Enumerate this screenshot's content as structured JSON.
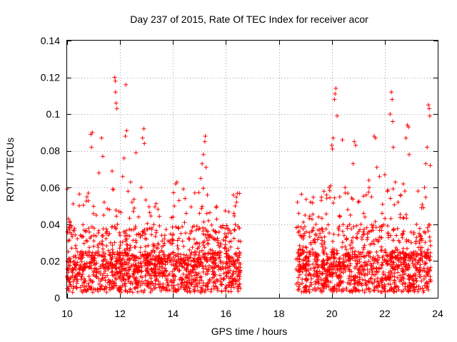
{
  "chart_data": {
    "type": "scatter",
    "title": "Day 237 of 2015, Rate Of TEC Index for receiver acor",
    "xlabel": "GPS time / hours",
    "ylabel": "ROTI / TECUs",
    "xlim": [
      10,
      24
    ],
    "ylim": [
      0,
      0.14
    ],
    "xticks": [
      10,
      12,
      14,
      16,
      18,
      20,
      22,
      24
    ],
    "xtick_labels": [
      "10",
      "12",
      "14",
      "16",
      "18",
      "20",
      "22",
      "24"
    ],
    "yticks": [
      0,
      0.02,
      0.04,
      0.06,
      0.08,
      0.1,
      0.12,
      0.14
    ],
    "ytick_labels": [
      "0",
      "0.02",
      "0.04",
      "0.06",
      "0.08",
      "0.1",
      "0.12",
      "0.14"
    ],
    "grid": true,
    "marker": "plus",
    "color": "#ff0000",
    "series": [
      {
        "points": [
          [
            10.05,
            0.043
          ],
          [
            10.1,
            0.041
          ],
          [
            10.2,
            0.012
          ],
          [
            10.3,
            0.018
          ],
          [
            10.4,
            0.025
          ],
          [
            10.5,
            0.034
          ],
          [
            10.6,
            0.022
          ],
          [
            10.7,
            0.036
          ],
          [
            10.75,
            0.055
          ],
          [
            10.8,
            0.057
          ],
          [
            10.9,
            0.089
          ],
          [
            10.95,
            0.09
          ],
          [
            10.92,
            0.082
          ],
          [
            11.0,
            0.028
          ],
          [
            11.1,
            0.045
          ],
          [
            11.2,
            0.068
          ],
          [
            11.3,
            0.087
          ],
          [
            11.35,
            0.077
          ],
          [
            11.4,
            0.052
          ],
          [
            11.5,
            0.036
          ],
          [
            11.6,
            0.048
          ],
          [
            11.7,
            0.069
          ],
          [
            11.75,
            0.059
          ],
          [
            11.8,
            0.12
          ],
          [
            11.82,
            0.118
          ],
          [
            11.85,
            0.106
          ],
          [
            11.88,
            0.103
          ],
          [
            11.83,
            0.112
          ],
          [
            11.9,
            0.04
          ],
          [
            12.0,
            0.034
          ],
          [
            12.1,
            0.066
          ],
          [
            12.15,
            0.076
          ],
          [
            12.2,
            0.088
          ],
          [
            12.25,
            0.091
          ],
          [
            12.22,
            0.116
          ],
          [
            12.3,
            0.058
          ],
          [
            12.4,
            0.063
          ],
          [
            12.45,
            0.052
          ],
          [
            12.5,
            0.047
          ],
          [
            12.6,
            0.079
          ],
          [
            12.7,
            0.044
          ],
          [
            12.8,
            0.06
          ],
          [
            12.85,
            0.087
          ],
          [
            12.9,
            0.092
          ],
          [
            12.92,
            0.084
          ],
          [
            13.0,
            0.032
          ],
          [
            13.1,
            0.018
          ],
          [
            13.3,
            0.014
          ],
          [
            13.5,
            0.012
          ],
          [
            13.7,
            0.016
          ],
          [
            13.9,
            0.02
          ],
          [
            14.0,
            0.044
          ],
          [
            14.05,
            0.05
          ],
          [
            14.1,
            0.062
          ],
          [
            14.15,
            0.063
          ],
          [
            14.2,
            0.038
          ],
          [
            14.3,
            0.035
          ],
          [
            14.4,
            0.028
          ],
          [
            14.5,
            0.046
          ],
          [
            14.6,
            0.032
          ],
          [
            14.7,
            0.036
          ],
          [
            14.8,
            0.039
          ],
          [
            14.9,
            0.03
          ],
          [
            15.0,
            0.046
          ],
          [
            15.05,
            0.065
          ],
          [
            15.1,
            0.073
          ],
          [
            15.15,
            0.078
          ],
          [
            15.2,
            0.085
          ],
          [
            15.22,
            0.088
          ],
          [
            15.25,
            0.071
          ],
          [
            15.3,
            0.056
          ],
          [
            15.4,
            0.034
          ],
          [
            15.5,
            0.022
          ],
          [
            15.6,
            0.036
          ],
          [
            15.7,
            0.03
          ],
          [
            15.8,
            0.02
          ],
          [
            15.9,
            0.016
          ],
          [
            16.0,
            0.024
          ],
          [
            16.1,
            0.026
          ],
          [
            16.2,
            0.022
          ],
          [
            16.3,
            0.046
          ],
          [
            16.35,
            0.05
          ],
          [
            16.4,
            0.052
          ],
          [
            16.45,
            0.039
          ],
          [
            16.5,
            0.038
          ],
          [
            18.7,
            0.052
          ],
          [
            18.75,
            0.046
          ],
          [
            18.8,
            0.034
          ],
          [
            18.9,
            0.026
          ],
          [
            19.0,
            0.022
          ],
          [
            19.1,
            0.018
          ],
          [
            19.2,
            0.03
          ],
          [
            19.3,
            0.038
          ],
          [
            19.4,
            0.04
          ],
          [
            19.5,
            0.044
          ],
          [
            19.6,
            0.053
          ],
          [
            19.7,
            0.058
          ],
          [
            19.8,
            0.056
          ],
          [
            19.9,
            0.06
          ],
          [
            19.95,
            0.061
          ],
          [
            20.0,
            0.083
          ],
          [
            20.02,
            0.081
          ],
          [
            20.05,
            0.087
          ],
          [
            20.1,
            0.108
          ],
          [
            20.12,
            0.111
          ],
          [
            20.15,
            0.114
          ],
          [
            20.2,
            0.099
          ],
          [
            20.3,
            0.055
          ],
          [
            20.4,
            0.086
          ],
          [
            20.5,
            0.06
          ],
          [
            20.6,
            0.048
          ],
          [
            20.7,
            0.045
          ],
          [
            20.8,
            0.073
          ],
          [
            20.85,
            0.085
          ],
          [
            20.9,
            0.083
          ],
          [
            21.0,
            0.052
          ],
          [
            21.1,
            0.04
          ],
          [
            21.2,
            0.046
          ],
          [
            21.3,
            0.056
          ],
          [
            21.4,
            0.064
          ],
          [
            21.5,
            0.055
          ],
          [
            21.6,
            0.088
          ],
          [
            21.65,
            0.087
          ],
          [
            21.7,
            0.071
          ],
          [
            21.8,
            0.066
          ],
          [
            21.9,
            0.046
          ],
          [
            22.0,
            0.067
          ],
          [
            22.1,
            0.058
          ],
          [
            22.2,
            0.1
          ],
          [
            22.25,
            0.112
          ],
          [
            22.28,
            0.108
          ],
          [
            22.3,
            0.096
          ],
          [
            22.32,
            0.082
          ],
          [
            22.4,
            0.063
          ],
          [
            22.5,
            0.052
          ],
          [
            22.6,
            0.056
          ],
          [
            22.7,
            0.062
          ],
          [
            22.8,
            0.087
          ],
          [
            22.85,
            0.094
          ],
          [
            22.9,
            0.093
          ],
          [
            22.92,
            0.078
          ],
          [
            23.0,
            0.03
          ],
          [
            23.1,
            0.025
          ],
          [
            23.2,
            0.04
          ],
          [
            23.3,
            0.035
          ],
          [
            23.4,
            0.025
          ],
          [
            23.5,
            0.06
          ],
          [
            23.55,
            0.073
          ],
          [
            23.6,
            0.082
          ],
          [
            23.65,
            0.105
          ],
          [
            23.68,
            0.103
          ],
          [
            23.7,
            0.099
          ],
          [
            23.72,
            0.072
          ]
        ]
      }
    ],
    "density_band": {
      "note_segments": [
        [
          10.0,
          16.55
        ],
        [
          18.65,
          23.75
        ]
      ],
      "typical_range": [
        0.0,
        0.03
      ]
    }
  }
}
